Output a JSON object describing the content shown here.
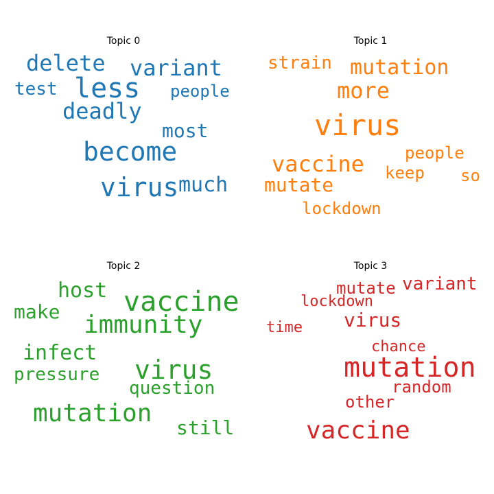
{
  "panels": [
    {
      "title": "Topic 0",
      "color": "#1f77b4",
      "words": [
        "delete",
        "variant",
        "less",
        "test",
        "people",
        "deadly",
        "most",
        "become",
        "virus",
        "much"
      ]
    },
    {
      "title": "Topic 1",
      "color": "#ff7f0e",
      "words": [
        "strain",
        "mutation",
        "more",
        "virus",
        "vaccine",
        "people",
        "keep",
        "mutate",
        "so",
        "lockdown"
      ]
    },
    {
      "title": "Topic 2",
      "color": "#2ca02c",
      "words": [
        "host",
        "vaccine",
        "make",
        "immunity",
        "infect",
        "virus",
        "pressure",
        "question",
        "mutation",
        "still"
      ]
    },
    {
      "title": "Topic 3",
      "color": "#d62728",
      "words": [
        "mutate",
        "variant",
        "lockdown",
        "virus",
        "time",
        "chance",
        "mutation",
        "random",
        "other",
        "vaccine"
      ]
    }
  ]
}
